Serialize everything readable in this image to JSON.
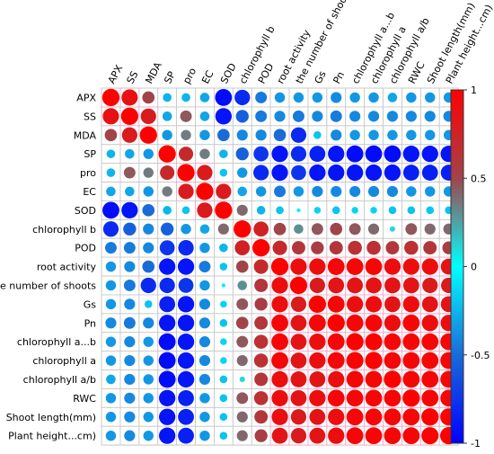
{
  "chart_data": {
    "type": "heatmap",
    "subtype": "correlation-circle-matrix",
    "variables": [
      "APX",
      "SS",
      "MDA",
      "SP",
      "pro",
      "EC",
      "SOD",
      "chlorophyll b",
      "POD",
      "root activity",
      "the number of shoots",
      "Gs",
      "Pn",
      "chlorophyll a...b",
      "chlorophyll a",
      "chlorophyll a/b",
      "RWC",
      "Shoot length(mm)",
      "Plant height...cm)"
    ],
    "col_labels": [
      "APX",
      "SS",
      "MDA",
      "SP",
      "pro",
      "EC",
      "SOD",
      "chlorophyll b",
      "POD",
      "root activity",
      "the number of shoots",
      "Gs",
      "Pn",
      "chlorophyll a...b",
      "chlorophyll a",
      "chlorophyll a/b",
      "RWC",
      "Shoot length(mm)",
      "Plant height...cm)"
    ],
    "row_labels": [
      "APX",
      "SS",
      "MDA",
      "SP",
      "pro",
      "EC",
      "SOD",
      "chlorophyll b",
      "POD",
      "root activity",
      "the number of shoots",
      "Gs",
      "Pn",
      "chlorophyll a...b",
      "chlorophyll a",
      "chlorophyll a/b",
      "RWC",
      "Shoot length(mm)",
      "Plant height...cm)"
    ],
    "matrix": [
      [
        1.0,
        0.88,
        0.5,
        -0.25,
        -0.25,
        -0.3,
        -0.95,
        -0.8,
        -0.45,
        -0.35,
        -0.35,
        -0.35,
        -0.4,
        -0.35,
        -0.35,
        -0.3,
        -0.35,
        -0.35,
        -0.35
      ],
      [
        0.88,
        1.0,
        0.8,
        -0.3,
        0.45,
        -0.3,
        -0.9,
        -0.55,
        -0.45,
        -0.4,
        -0.45,
        -0.4,
        -0.45,
        -0.4,
        -0.4,
        -0.4,
        -0.4,
        -0.4,
        -0.4
      ],
      [
        0.5,
        0.8,
        1.0,
        -0.35,
        0.35,
        -0.35,
        -0.5,
        -0.4,
        -0.4,
        -0.5,
        -0.8,
        -0.2,
        -0.4,
        -0.35,
        -0.35,
        -0.35,
        -0.35,
        -0.35,
        -0.35
      ],
      [
        -0.25,
        -0.3,
        -0.35,
        1.0,
        0.7,
        0.35,
        -0.25,
        -0.55,
        -0.75,
        -0.9,
        -0.8,
        -0.85,
        -0.9,
        -0.95,
        -0.95,
        -0.95,
        -0.9,
        -0.9,
        -0.9
      ],
      [
        -0.25,
        0.45,
        0.35,
        0.7,
        1.0,
        0.8,
        -0.2,
        -0.35,
        -0.8,
        -0.9,
        -0.75,
        -0.9,
        -0.9,
        -0.9,
        -0.9,
        -0.9,
        -0.85,
        -0.85,
        -0.85
      ],
      [
        -0.3,
        -0.3,
        -0.35,
        0.35,
        0.8,
        1.0,
        0.8,
        -0.3,
        -0.35,
        -0.45,
        -0.35,
        -0.4,
        -0.4,
        -0.4,
        -0.4,
        -0.4,
        -0.35,
        -0.35,
        -0.35
      ],
      [
        -0.95,
        -0.9,
        -0.5,
        -0.25,
        -0.2,
        0.8,
        1.0,
        0.4,
        -0.25,
        -0.2,
        -0.05,
        -0.15,
        -0.2,
        -0.15,
        -0.15,
        -0.2,
        -0.2,
        -0.2,
        -0.2
      ],
      [
        -0.8,
        -0.55,
        -0.4,
        -0.55,
        -0.35,
        -0.3,
        0.4,
        1.0,
        0.75,
        0.5,
        0.3,
        0.45,
        0.5,
        0.45,
        0.4,
        0.1,
        0.45,
        0.4,
        0.4
      ],
      [
        -0.45,
        -0.45,
        -0.4,
        -0.75,
        -0.8,
        -0.35,
        -0.25,
        0.75,
        1.0,
        0.7,
        0.6,
        0.55,
        0.6,
        0.65,
        0.65,
        0.6,
        0.65,
        0.6,
        0.55
      ],
      [
        -0.35,
        -0.4,
        -0.5,
        -0.9,
        -0.9,
        -0.45,
        -0.2,
        0.5,
        0.7,
        1.0,
        0.9,
        0.9,
        0.95,
        0.95,
        0.95,
        0.9,
        0.9,
        0.9,
        0.85
      ],
      [
        -0.35,
        -0.45,
        -0.8,
        -0.8,
        -0.75,
        -0.35,
        -0.05,
        0.3,
        0.6,
        0.9,
        1.0,
        0.8,
        0.85,
        0.85,
        0.85,
        0.85,
        0.85,
        0.8,
        0.8
      ],
      [
        -0.35,
        -0.4,
        -0.2,
        -0.85,
        -0.9,
        -0.4,
        -0.15,
        0.45,
        0.55,
        0.9,
        0.8,
        1.0,
        0.95,
        0.9,
        0.9,
        0.85,
        0.9,
        0.85,
        0.85
      ],
      [
        -0.4,
        -0.45,
        -0.4,
        -0.9,
        -0.9,
        -0.4,
        -0.2,
        0.5,
        0.6,
        0.95,
        0.85,
        0.95,
        1.0,
        0.95,
        0.95,
        0.9,
        0.95,
        0.9,
        0.9
      ],
      [
        -0.35,
        -0.4,
        -0.35,
        -0.95,
        -0.9,
        -0.4,
        -0.15,
        0.45,
        0.65,
        0.95,
        0.85,
        0.9,
        0.95,
        1.0,
        0.98,
        0.95,
        0.95,
        0.95,
        0.95
      ],
      [
        -0.35,
        -0.4,
        -0.35,
        -0.95,
        -0.9,
        -0.4,
        -0.15,
        0.4,
        0.65,
        0.95,
        0.85,
        0.9,
        0.95,
        0.98,
        1.0,
        0.95,
        0.95,
        0.95,
        0.95
      ],
      [
        -0.3,
        -0.4,
        -0.35,
        -0.95,
        -0.9,
        -0.4,
        -0.2,
        0.1,
        0.6,
        0.9,
        0.85,
        0.85,
        0.9,
        0.95,
        0.95,
        1.0,
        0.95,
        0.95,
        0.95
      ],
      [
        -0.35,
        -0.4,
        -0.35,
        -0.9,
        -0.85,
        -0.35,
        -0.2,
        0.45,
        0.65,
        0.9,
        0.85,
        0.9,
        0.95,
        0.95,
        0.95,
        0.95,
        1.0,
        0.95,
        0.95
      ],
      [
        -0.35,
        -0.4,
        -0.35,
        -0.9,
        -0.85,
        -0.35,
        -0.2,
        0.4,
        0.6,
        0.9,
        0.8,
        0.85,
        0.9,
        0.95,
        0.95,
        0.95,
        0.95,
        1.0,
        0.98
      ],
      [
        -0.35,
        -0.4,
        -0.35,
        -0.9,
        -0.85,
        -0.35,
        -0.2,
        0.4,
        0.55,
        0.85,
        0.8,
        0.85,
        0.9,
        0.95,
        0.95,
        0.95,
        0.95,
        0.98,
        1.0
      ]
    ],
    "colorbar": {
      "range": [
        -1,
        1
      ],
      "ticks": [
        1,
        0.5,
        0,
        -0.5,
        -1
      ],
      "tick_labels": [
        "1",
        "0.5",
        "0",
        "-0.5",
        "-1"
      ],
      "colors": [
        "#ff0000",
        "#a0444a",
        "#00ffff",
        "#0000ff"
      ]
    },
    "grid": true
  }
}
